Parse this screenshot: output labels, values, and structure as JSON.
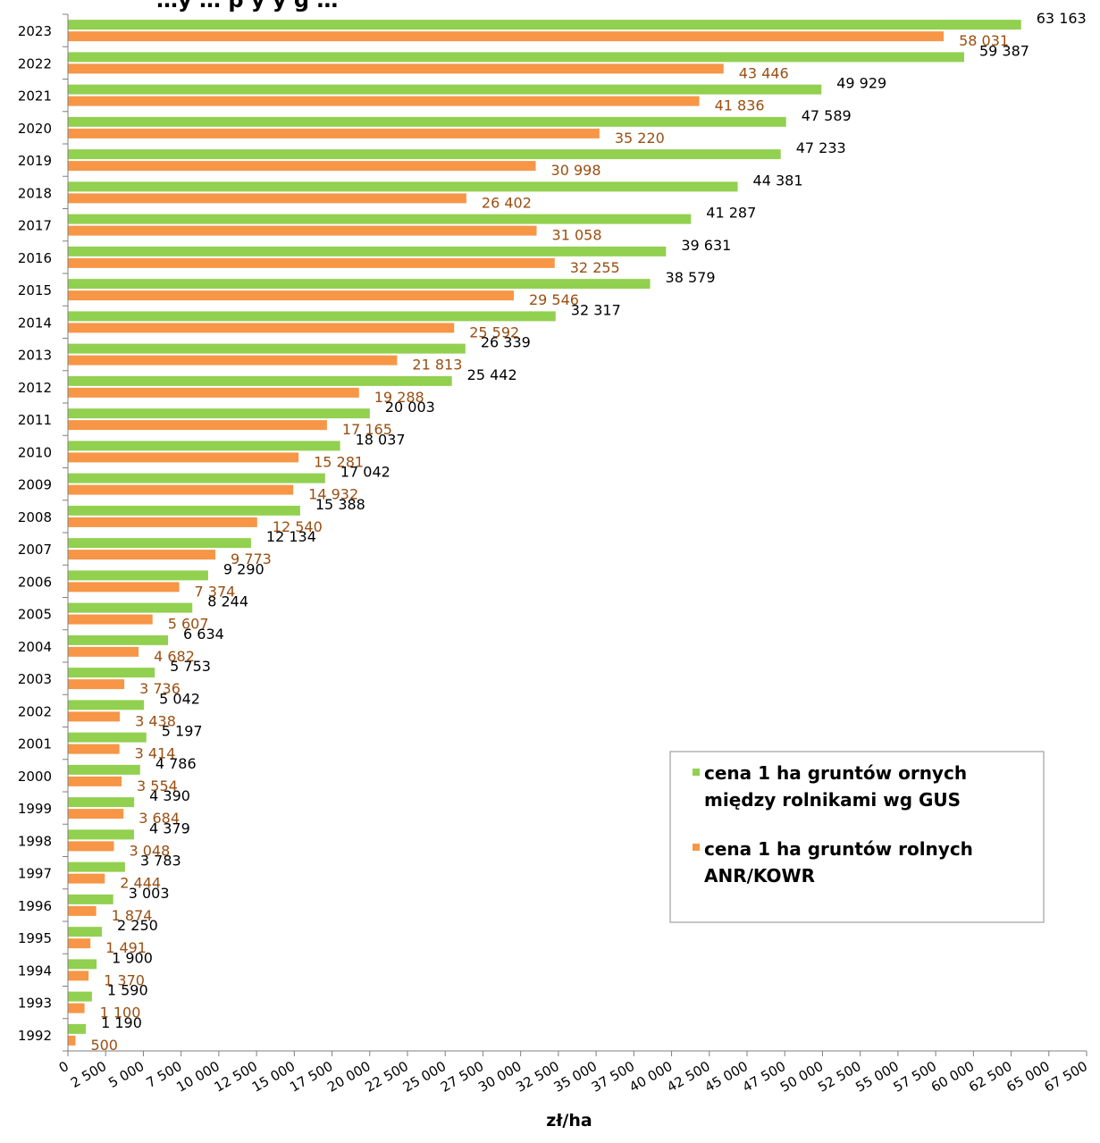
{
  "chart_data": {
    "type": "bar",
    "orientation": "horizontal",
    "title": "…y … p y y g …",
    "xlabel": "zł/ha",
    "ylabel": "",
    "xlim": [
      0,
      67500
    ],
    "x_tick_step": 2500,
    "grid": false,
    "legend_position": "right",
    "categories": [
      "1992",
      "1993",
      "1994",
      "1995",
      "1996",
      "1997",
      "1998",
      "1999",
      "2000",
      "2001",
      "2002",
      "2003",
      "2004",
      "2005",
      "2006",
      "2007",
      "2008",
      "2009",
      "2010",
      "2011",
      "2012",
      "2013",
      "2014",
      "2015",
      "2016",
      "2017",
      "2018",
      "2019",
      "2020",
      "2021",
      "2022",
      "2023"
    ],
    "series": [
      {
        "name": "cena 1 ha gruntów ornych między rolnikami wg GUS",
        "color": "#92d050",
        "label_color": "#000000",
        "values": [
          1190,
          1590,
          1900,
          2250,
          3003,
          3783,
          4379,
          4390,
          4786,
          5197,
          5042,
          5753,
          6634,
          8244,
          9290,
          12134,
          15388,
          17042,
          18037,
          20003,
          25442,
          26339,
          32317,
          38579,
          39631,
          41287,
          44381,
          47233,
          47589,
          49929,
          59387,
          63163
        ],
        "labels": [
          "1 190",
          "1 590",
          "1 900",
          "2 250",
          "3 003",
          "3 783",
          "4 379",
          "4 390",
          "4 786",
          "5 197",
          "5 042",
          "5 753",
          "6 634",
          "8 244",
          "9 290",
          "12 134",
          "15 388",
          "17 042",
          "18 037",
          "20 003",
          "25 442",
          "26 339",
          "32 317",
          "38 579",
          "39 631",
          "41 287",
          "44 381",
          "47 233",
          "47 589",
          "49 929",
          "59 387",
          "63 163"
        ]
      },
      {
        "name": "cena 1 ha gruntów rolnych ANR/KOWR",
        "color": "#f79646",
        "label_color": "#9a4e10",
        "values": [
          500,
          1100,
          1370,
          1491,
          1874,
          2444,
          3048,
          3684,
          3554,
          3414,
          3438,
          3736,
          4682,
          5607,
          7374,
          9773,
          12540,
          14932,
          15281,
          17165,
          19288,
          21813,
          25592,
          29546,
          32255,
          31058,
          26402,
          30998,
          35220,
          41836,
          43446,
          58031
        ],
        "labels": [
          "500",
          "1 100",
          "1 370",
          "1 491",
          "1 874",
          "2 444",
          "3 048",
          "3 684",
          "3 554",
          "3 414",
          "3 438",
          "3 736",
          "4 682",
          "5 607",
          "7 374",
          "9 773",
          "12 540",
          "14 932",
          "15 281",
          "17 165",
          "19 288",
          "21 813",
          "25 592",
          "29 546",
          "32 255",
          "31 058",
          "26 402",
          "30 998",
          "35 220",
          "41 836",
          "43 446",
          "58 031"
        ]
      }
    ],
    "x_tick_labels": [
      "0",
      "2 500",
      "5 000",
      "7 500",
      "10 000",
      "12 500",
      "15 000",
      "17 500",
      "20 000",
      "22 500",
      "25 000",
      "27 500",
      "30 000",
      "32 500",
      "35 000",
      "37 500",
      "40 000",
      "42 500",
      "45 000",
      "47 500",
      "50 000",
      "52 500",
      "55 000",
      "57 500",
      "60 000",
      "62 500",
      "65 000",
      "67 500"
    ]
  },
  "legend": {
    "items": [
      {
        "line1": "cena 1 ha gruntów ornych",
        "line2": "między rolnikami wg GUS"
      },
      {
        "line1": "cena 1 ha gruntów rolnych",
        "line2": "ANR/KOWR"
      }
    ]
  }
}
